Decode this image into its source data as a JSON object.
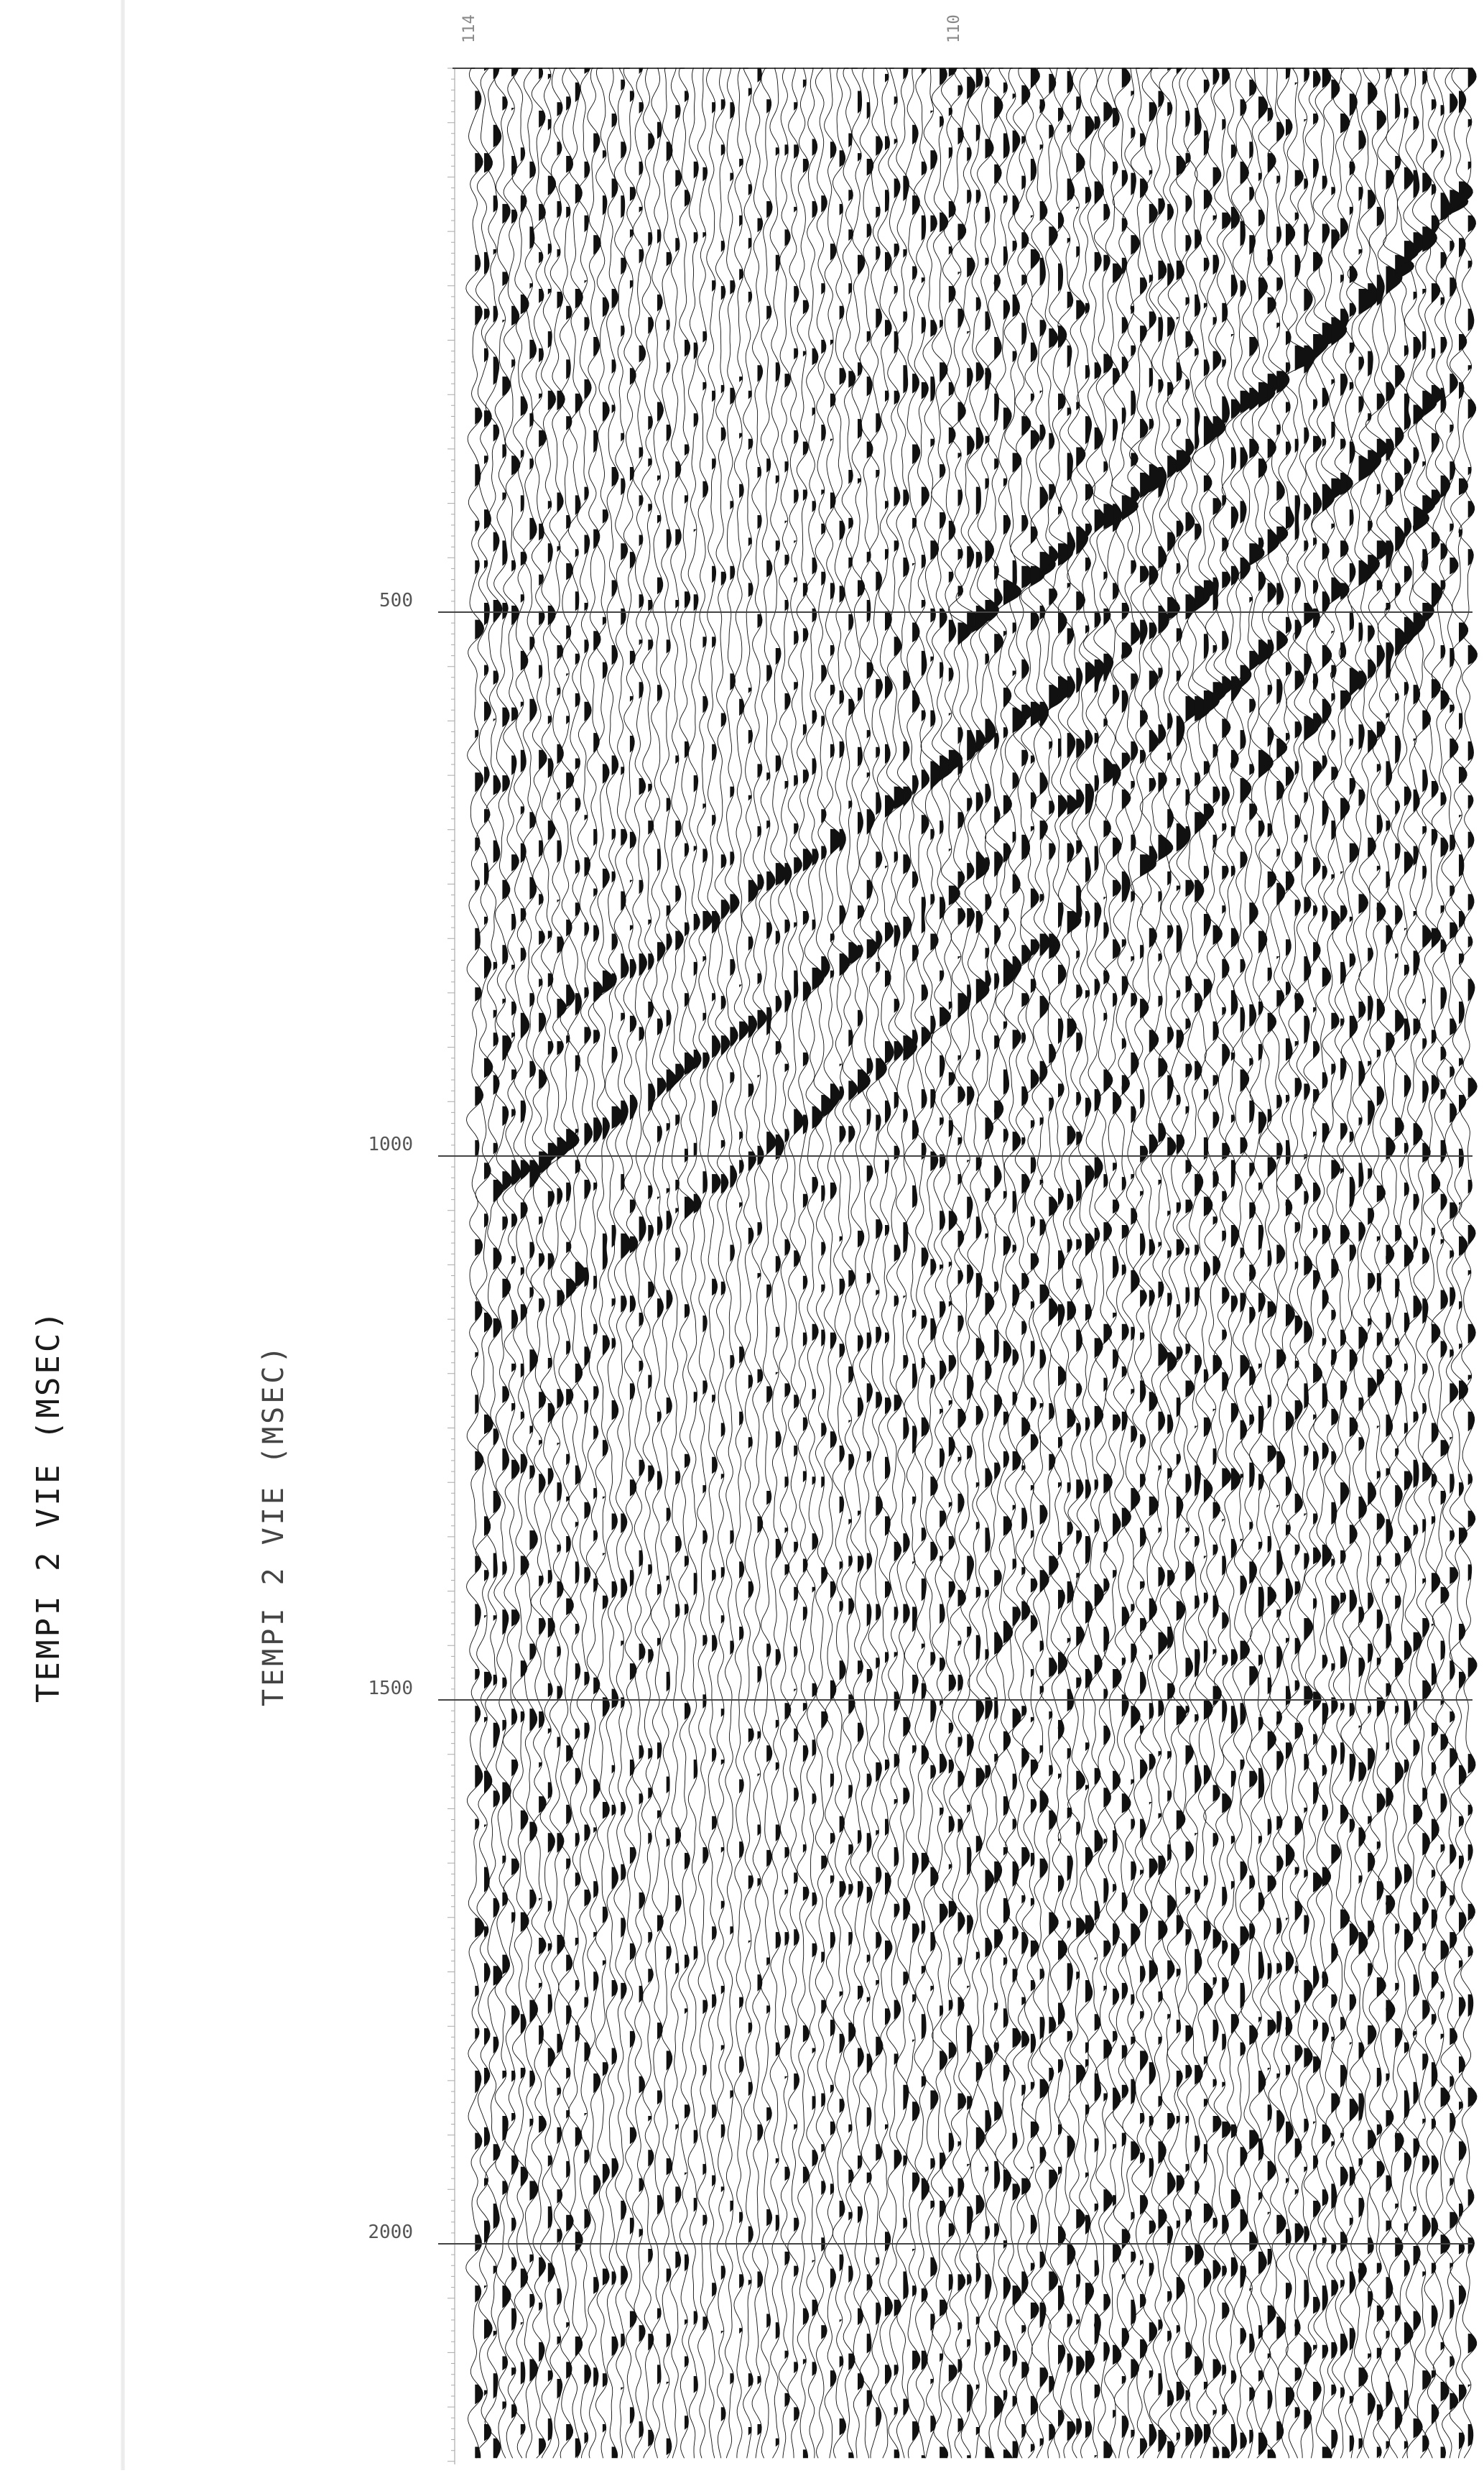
{
  "chart_data": {
    "type": "seismic-wiggle",
    "ylabel": "TEMPI 2 VIE (MSEC)",
    "ylabel_copy": "TEMPI 2 VIE (MSEC)",
    "top_labels": [
      "114",
      "110"
    ],
    "y_ticks": [
      {
        "value": 500,
        "label": "500"
      },
      {
        "value": 1000,
        "label": "1000"
      },
      {
        "value": 1500,
        "label": "1500"
      },
      {
        "value": 2000,
        "label": "2000"
      }
    ],
    "ylim": [
      0,
      2200
    ],
    "y_direction": "down",
    "grid": true,
    "trace_count": 110,
    "events": [
      {
        "name": "",
        "t_start": 110,
        "t_end": 520,
        "trace_start": 108,
        "trace_end": 52
      },
      {
        "name": "",
        "t_start": 290,
        "t_end": 900,
        "trace_start": 106,
        "trace_end": 2
      },
      {
        "name": "",
        "t_start": 380,
        "t_end": 1030,
        "trace_start": 106,
        "trace_end": 2
      },
      {
        "name": "",
        "t_start": 470,
        "t_end": 1120,
        "trace_start": 106,
        "trace_end": 10
      }
    ],
    "colors": {
      "ink": "#111111",
      "grid": "#444444",
      "text": "#555555"
    }
  }
}
